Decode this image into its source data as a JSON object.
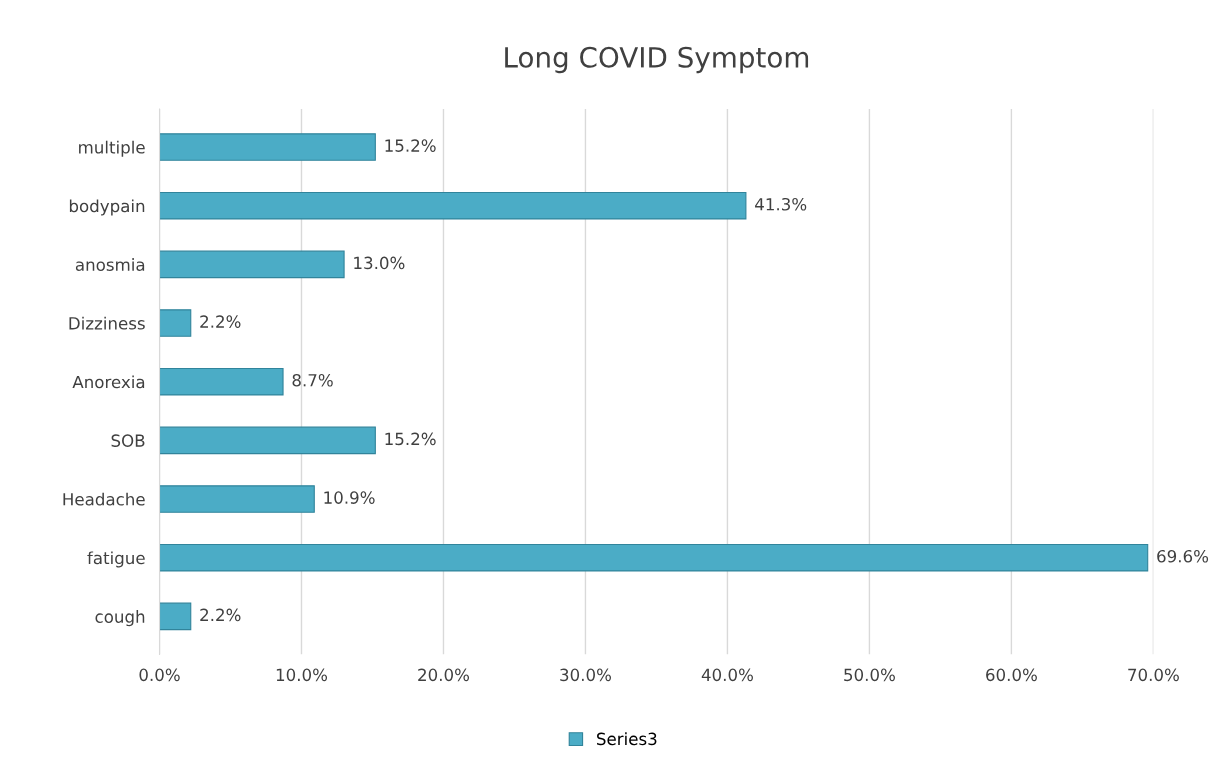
{
  "chart_data": {
    "type": "bar",
    "orientation": "horizontal",
    "title": "Long COVID Symptom",
    "categories": [
      "multiple",
      "bodypain",
      "anosmia",
      "Dizziness",
      "Anorexia",
      "SOB",
      "Headache",
      "fatigue",
      "cough"
    ],
    "series": [
      {
        "name": "Series3",
        "color": "#4bacc6",
        "values": [
          15.2,
          41.3,
          13.0,
          2.2,
          8.7,
          15.2,
          10.9,
          69.6,
          2.2
        ],
        "value_labels": [
          "15.2%",
          "41.3%",
          "13.0%",
          "2.2%",
          "8.7%",
          "15.2%",
          "10.9%",
          "69.6%",
          "2.2%"
        ]
      }
    ],
    "xlim": [
      0,
      70
    ],
    "xticks": [
      {
        "value": 0,
        "label": "0.0%"
      },
      {
        "value": 10,
        "label": "10.0%"
      },
      {
        "value": 20,
        "label": "20.0%"
      },
      {
        "value": 30,
        "label": "30.0%"
      },
      {
        "value": 40,
        "label": "40.0%"
      },
      {
        "value": 50,
        "label": "50.0%"
      },
      {
        "value": 60,
        "label": "60.0%"
      },
      {
        "value": 70,
        "label": "70.0%"
      }
    ],
    "grid": "x",
    "legend": "bottom"
  }
}
